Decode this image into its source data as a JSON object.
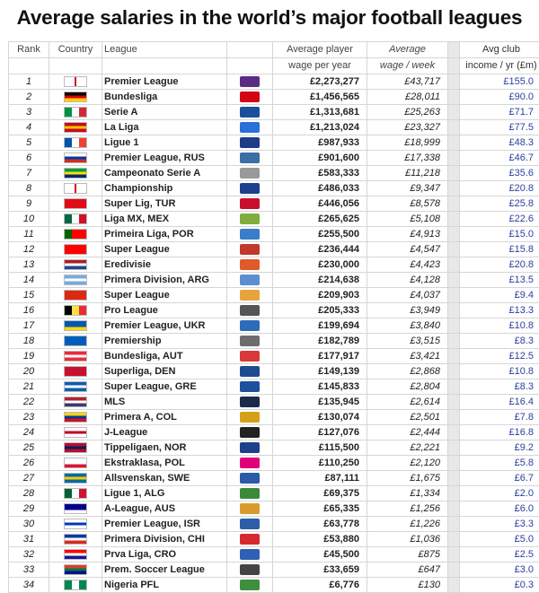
{
  "title": "Average salaries in the world’s major football leagues",
  "headers": {
    "rank": "Rank",
    "country": "Country",
    "league": "League",
    "player_line1": "Average player",
    "player_line2": "wage per year",
    "week_line1": "Average",
    "week_line2": "wage / week",
    "club_line1": "Avg club",
    "club_line2": "income / yr (£m)"
  },
  "rows": [
    {
      "rank": "1",
      "league": "Premier League",
      "wage_year": "£2,273,277",
      "wage_week": "£43,717",
      "club_income": "£155.0",
      "flag": "england-flag",
      "flag_colors": [
        "#ffffff",
        "#ffffff",
        "#ffffff"
      ],
      "logo": "premier-league-logo",
      "logo_color": "#5a2d82"
    },
    {
      "rank": "2",
      "league": "Bundesliga",
      "wage_year": "£1,456,565",
      "wage_week": "£28,011",
      "club_income": "£90.0",
      "flag": "germany-flag",
      "flag_colors": [
        "#000000",
        "#dd0000",
        "#ffce00"
      ],
      "logo": "bundesliga-logo",
      "logo_color": "#d20515"
    },
    {
      "rank": "3",
      "league": "Serie A",
      "wage_year": "£1,313,681",
      "wage_week": "£25,263",
      "club_income": "£71.7",
      "flag": "italy-flag",
      "flag_colors": [
        "#009246",
        "#ffffff",
        "#ce2b37"
      ],
      "logo": "serie-a-logo",
      "logo_color": "#1b4f9c"
    },
    {
      "rank": "4",
      "league": "La Liga",
      "wage_year": "£1,213,024",
      "wage_week": "£23,327",
      "club_income": "£77.5",
      "flag": "spain-flag",
      "flag_colors": [
        "#c60b1e",
        "#ffc400",
        "#c60b1e"
      ],
      "logo": "la-liga-logo",
      "logo_color": "#2a6fdb"
    },
    {
      "rank": "5",
      "league": "Ligue 1",
      "wage_year": "£987,933",
      "wage_week": "£18,999",
      "club_income": "£48.3",
      "flag": "france-flag",
      "flag_colors": [
        "#0055a4",
        "#ffffff",
        "#ef4135"
      ],
      "logo": "ligue-1-logo",
      "logo_color": "#1f3c88"
    },
    {
      "rank": "6",
      "league": "Premier League, RUS",
      "wage_year": "£901,600",
      "wage_week": "£17,338",
      "club_income": "£46.7",
      "flag": "russia-flag",
      "flag_colors": [
        "#ffffff",
        "#0039a6",
        "#d52b1e"
      ],
      "logo": "russian-premier-league-logo",
      "logo_color": "#3a6ea5"
    },
    {
      "rank": "7",
      "league": "Campeonato Serie A",
      "wage_year": "£583,333",
      "wage_week": "£11,218",
      "club_income": "£35.6",
      "flag": "brazil-flag",
      "flag_colors": [
        "#009c3b",
        "#ffdf00",
        "#002776"
      ],
      "logo": "brasileirao-logo",
      "logo_color": "#999999"
    },
    {
      "rank": "8",
      "league": "Championship",
      "wage_year": "£486,033",
      "wage_week": "£9,347",
      "club_income": "£20.8",
      "flag": "england-flag",
      "flag_colors": [
        "#ffffff",
        "#ffffff",
        "#ffffff"
      ],
      "logo": "championship-logo",
      "logo_color": "#1d3f8f"
    },
    {
      "rank": "9",
      "league": "Super Lig, TUR",
      "wage_year": "£446,056",
      "wage_week": "£8,578",
      "club_income": "£25.8",
      "flag": "turkey-flag",
      "flag_colors": [
        "#e30a17",
        "#e30a17",
        "#e30a17"
      ],
      "logo": "super-lig-logo",
      "logo_color": "#c8102e"
    },
    {
      "rank": "10",
      "league": "Liga MX, MEX",
      "wage_year": "£265,625",
      "wage_week": "£5,108",
      "club_income": "£22.6",
      "flag": "mexico-flag",
      "flag_colors": [
        "#006847",
        "#ffffff",
        "#ce1126"
      ],
      "logo": "liga-mx-logo",
      "logo_color": "#7fae3e"
    },
    {
      "rank": "11",
      "league": "Primeira Liga, POR",
      "wage_year": "£255,500",
      "wage_week": "£4,913",
      "club_income": "£15.0",
      "flag": "portugal-flag",
      "flag_colors": [
        "#006600",
        "#ff0000",
        "#ff0000"
      ],
      "logo": "primeira-liga-logo",
      "logo_color": "#3a7dc9"
    },
    {
      "rank": "12",
      "league": "Super League",
      "wage_year": "£236,444",
      "wage_week": "£4,547",
      "club_income": "£15.8",
      "flag": "switzerland-flag",
      "flag_colors": [
        "#ff0000",
        "#ff0000",
        "#ff0000"
      ],
      "logo": "swiss-super-league-logo",
      "logo_color": "#c0392b"
    },
    {
      "rank": "13",
      "league": "Eredivisie",
      "wage_year": "£230,000",
      "wage_week": "£4,423",
      "club_income": "£20.8",
      "flag": "netherlands-flag",
      "flag_colors": [
        "#ae1c28",
        "#ffffff",
        "#21468b"
      ],
      "logo": "eredivisie-logo",
      "logo_color": "#e05a2b"
    },
    {
      "rank": "14",
      "league": "Primera Division, ARG",
      "wage_year": "£214,638",
      "wage_week": "£4,128",
      "club_income": "£13.5",
      "flag": "argentina-flag",
      "flag_colors": [
        "#74acdf",
        "#ffffff",
        "#74acdf"
      ],
      "logo": "argentina-primera-logo",
      "logo_color": "#5b8fd1"
    },
    {
      "rank": "15",
      "league": "Super League",
      "wage_year": "£209,903",
      "wage_week": "£4,037",
      "club_income": "£9.4",
      "flag": "china-flag",
      "flag_colors": [
        "#de2910",
        "#de2910",
        "#de2910"
      ],
      "logo": "chinese-super-league-logo",
      "logo_color": "#e8a33d"
    },
    {
      "rank": "16",
      "league": "Pro League",
      "wage_year": "£205,333",
      "wage_week": "£3,949",
      "club_income": "£13.3",
      "flag": "belgium-flag",
      "flag_colors": [
        "#000000",
        "#fae042",
        "#ed2939"
      ],
      "logo": "belgian-pro-league-logo",
      "logo_color": "#555555"
    },
    {
      "rank": "17",
      "league": "Premier League, UKR",
      "wage_year": "£199,694",
      "wage_week": "£3,840",
      "club_income": "£10.8",
      "flag": "ukraine-flag",
      "flag_colors": [
        "#0057b7",
        "#0057b7",
        "#ffd700"
      ],
      "logo": "ukrainian-premier-league-logo",
      "logo_color": "#2e6bb8"
    },
    {
      "rank": "18",
      "league": "Premiership",
      "wage_year": "£182,789",
      "wage_week": "£3,515",
      "club_income": "£8.3",
      "flag": "scotland-flag",
      "flag_colors": [
        "#005eb8",
        "#005eb8",
        "#005eb8"
      ],
      "logo": "scottish-premiership-logo",
      "logo_color": "#6d6d6d"
    },
    {
      "rank": "19",
      "league": "Bundesliga, AUT",
      "wage_year": "£177,917",
      "wage_week": "£3,421",
      "club_income": "£12.5",
      "flag": "austria-flag",
      "flag_colors": [
        "#ed2939",
        "#ffffff",
        "#ed2939"
      ],
      "logo": "austrian-bundesliga-logo",
      "logo_color": "#d83a3a"
    },
    {
      "rank": "20",
      "league": "Superliga, DEN",
      "wage_year": "£149,139",
      "wage_week": "£2,868",
      "club_income": "£10.8",
      "flag": "denmark-flag",
      "flag_colors": [
        "#c8102e",
        "#c8102e",
        "#c8102e"
      ],
      "logo": "danish-superliga-logo",
      "logo_color": "#1e4b8f"
    },
    {
      "rank": "21",
      "league": "Super League, GRE",
      "wage_year": "£145,833",
      "wage_week": "£2,804",
      "club_income": "£8.3",
      "flag": "greece-flag",
      "flag_colors": [
        "#0d5eaf",
        "#ffffff",
        "#0d5eaf"
      ],
      "logo": "greek-super-league-logo",
      "logo_color": "#1f4f9d"
    },
    {
      "rank": "22",
      "league": "MLS",
      "wage_year": "£135,945",
      "wage_week": "£2,614",
      "club_income": "£16.4",
      "flag": "usa-flag",
      "flag_colors": [
        "#b22234",
        "#ffffff",
        "#3c3b6e"
      ],
      "logo": "mls-logo",
      "logo_color": "#1b2a4a"
    },
    {
      "rank": "23",
      "league": "Primera A, COL",
      "wage_year": "£130,074",
      "wage_week": "£2,501",
      "club_income": "£7.8",
      "flag": "colombia-flag",
      "flag_colors": [
        "#fcd116",
        "#003893",
        "#ce1126"
      ],
      "logo": "colombia-primera-logo",
      "logo_color": "#d4a017"
    },
    {
      "rank": "24",
      "league": "J-League",
      "wage_year": "£127,076",
      "wage_week": "£2,444",
      "club_income": "£16.8",
      "flag": "japan-flag",
      "flag_colors": [
        "#ffffff",
        "#bc002d",
        "#ffffff"
      ],
      "logo": "j-league-logo",
      "logo_color": "#222222"
    },
    {
      "rank": "25",
      "league": "Tippeligaen, NOR",
      "wage_year": "£115,500",
      "wage_week": "£2,221",
      "club_income": "£9.2",
      "flag": "norway-flag",
      "flag_colors": [
        "#ba0c2f",
        "#00205b",
        "#ba0c2f"
      ],
      "logo": "tippeligaen-logo",
      "logo_color": "#1e3f8a"
    },
    {
      "rank": "26",
      "league": "Ekstraklasa, POL",
      "wage_year": "£110,250",
      "wage_week": "£2,120",
      "club_income": "£5.8",
      "flag": "poland-flag",
      "flag_colors": [
        "#ffffff",
        "#ffffff",
        "#dc143c"
      ],
      "logo": "ekstraklasa-logo",
      "logo_color": "#e2007a"
    },
    {
      "rank": "27",
      "league": "Allsvenskan, SWE",
      "wage_year": "£87,111",
      "wage_week": "£1,675",
      "club_income": "£6.7",
      "flag": "sweden-flag",
      "flag_colors": [
        "#006aa7",
        "#fecc00",
        "#006aa7"
      ],
      "logo": "allsvenskan-logo",
      "logo_color": "#2a5aa8"
    },
    {
      "rank": "28",
      "league": "Ligue 1, ALG",
      "wage_year": "£69,375",
      "wage_week": "£1,334",
      "club_income": "£2.0",
      "flag": "algeria-flag",
      "flag_colors": [
        "#006233",
        "#ffffff",
        "#d21034"
      ],
      "logo": "algerian-ligue-1-logo",
      "logo_color": "#3b8a3b"
    },
    {
      "rank": "29",
      "league": "A-League, AUS",
      "wage_year": "£65,335",
      "wage_week": "£1,256",
      "club_income": "£6.0",
      "flag": "australia-flag",
      "flag_colors": [
        "#00008b",
        "#00008b",
        "#ffffff"
      ],
      "logo": "a-league-logo",
      "logo_color": "#d89b2b"
    },
    {
      "rank": "30",
      "league": "Premier League, ISR",
      "wage_year": "£63,778",
      "wage_week": "£1,226",
      "club_income": "£3.3",
      "flag": "israel-flag",
      "flag_colors": [
        "#ffffff",
        "#0038b8",
        "#ffffff"
      ],
      "logo": "israeli-premier-league-logo",
      "logo_color": "#2e5ea8"
    },
    {
      "rank": "31",
      "league": "Primera Division, CHI",
      "wage_year": "£53,880",
      "wage_week": "£1,036",
      "club_income": "£5.0",
      "flag": "chile-flag",
      "flag_colors": [
        "#0039a6",
        "#ffffff",
        "#d52b1e"
      ],
      "logo": "chilean-primera-logo",
      "logo_color": "#d7282f"
    },
    {
      "rank": "32",
      "league": "Prva Liga, CRO",
      "wage_year": "£45,500",
      "wage_week": "£875",
      "club_income": "£2.5",
      "flag": "croatia-flag",
      "flag_colors": [
        "#ff0000",
        "#ffffff",
        "#171796"
      ],
      "logo": "prva-liga-logo",
      "logo_color": "#2e61b5"
    },
    {
      "rank": "33",
      "league": "Prem. Soccer League",
      "wage_year": "£33,659",
      "wage_week": "£647",
      "club_income": "£3.0",
      "flag": "south-africa-flag",
      "flag_colors": [
        "#e03c31",
        "#007749",
        "#001489"
      ],
      "logo": "psl-logo",
      "logo_color": "#444444"
    },
    {
      "rank": "34",
      "league": "Nigeria PFL",
      "wage_year": "£6,776",
      "wage_week": "£130",
      "club_income": "£0.3",
      "flag": "nigeria-flag",
      "flag_colors": [
        "#008751",
        "#ffffff",
        "#008751"
      ],
      "logo": "nigeria-pfl-logo",
      "logo_color": "#3f8f3f"
    }
  ]
}
